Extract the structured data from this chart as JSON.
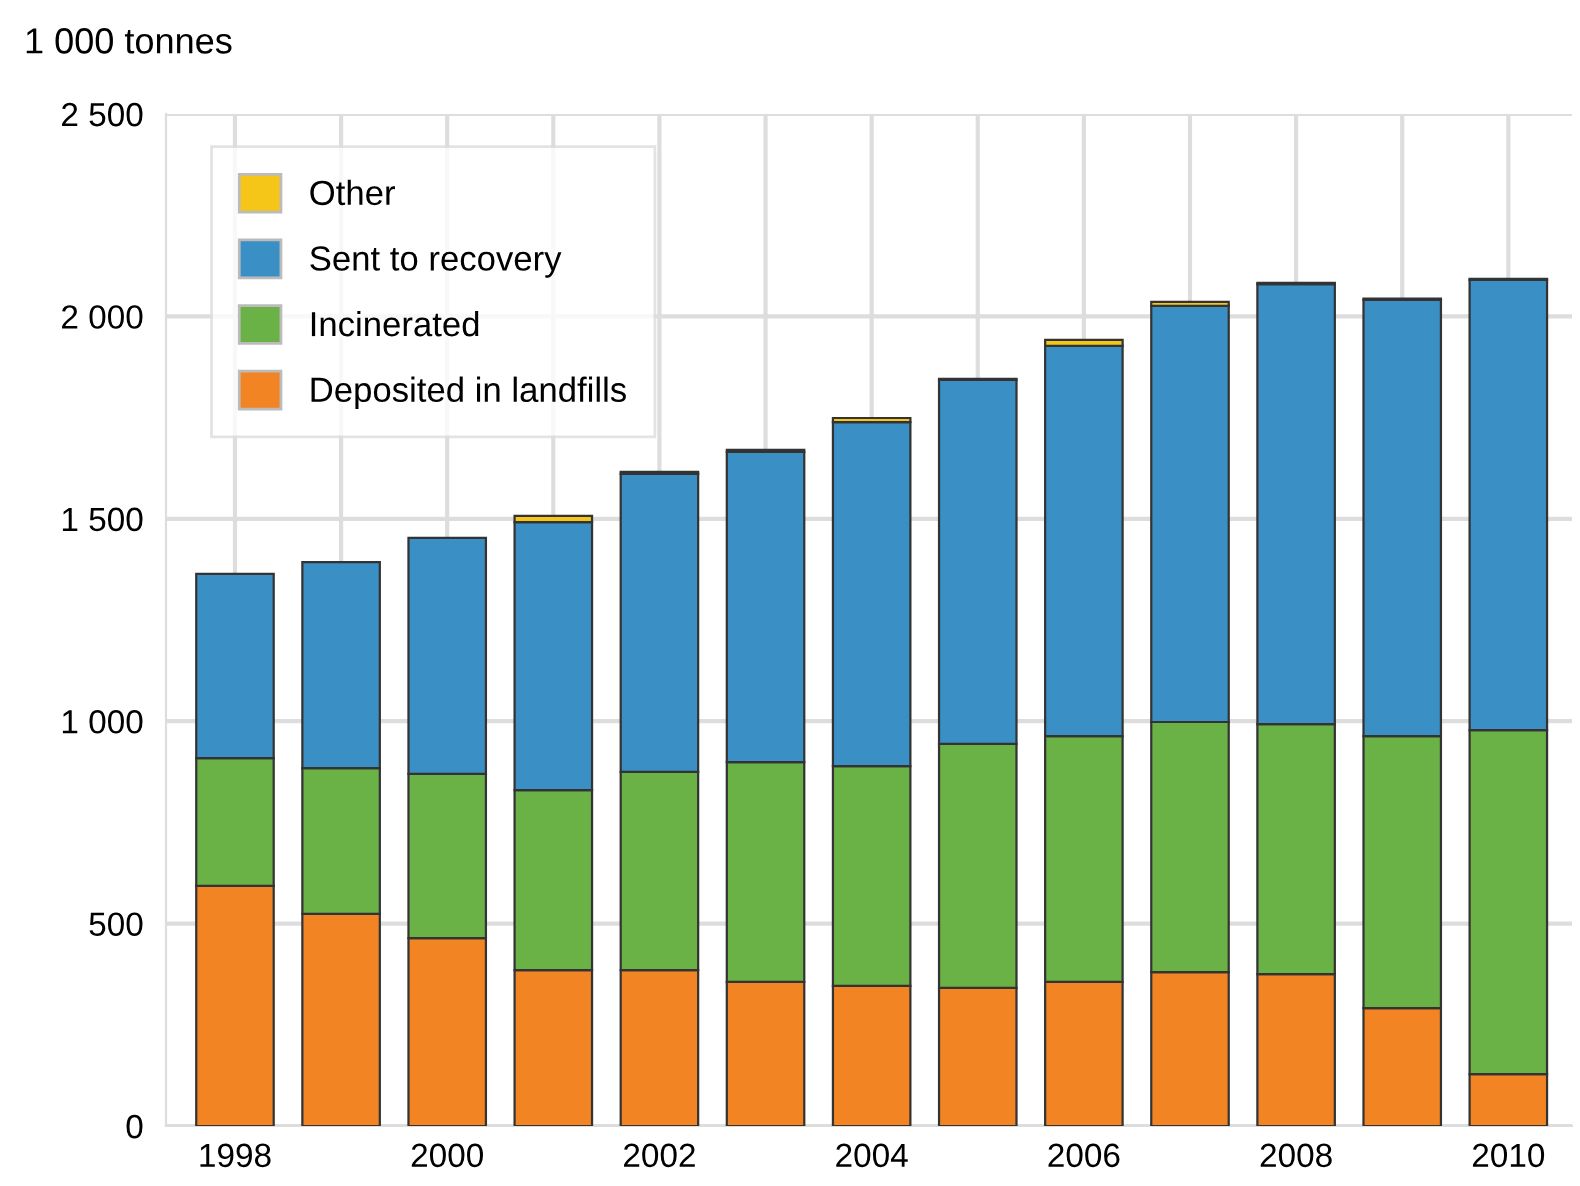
{
  "chart_data": {
    "type": "bar",
    "stacked": true,
    "ylabel": "1 000 tonnes",
    "categories": [
      "1998",
      null,
      "2000",
      null,
      "2002",
      null,
      "2004",
      null,
      "2006",
      null,
      "2008",
      null,
      "2010"
    ],
    "series": [
      {
        "name": "Deposited in landfills",
        "color": "#f28424",
        "values": [
          593,
          524,
          464,
          385,
          385,
          356,
          346,
          341,
          356,
          380,
          375,
          291,
          128
        ]
      },
      {
        "name": "Incinerated",
        "color": "#6ab146",
        "values": [
          316,
          360,
          406,
          445,
          490,
          543,
          543,
          603,
          607,
          618,
          618,
          672,
          850
        ]
      },
      {
        "name": "Sent to recovery",
        "color": "#3a8fc4",
        "values": [
          455,
          509,
          583,
          662,
          736,
          766,
          850,
          899,
          964,
          1028,
          1087,
          1078,
          1112
        ]
      },
      {
        "name": "Other",
        "color": "#f5c518",
        "values": [
          null,
          null,
          null,
          15,
          5,
          5,
          10,
          3,
          15,
          10,
          3,
          3,
          3
        ]
      }
    ],
    "ylim": [
      0,
      2500
    ],
    "yticks": [
      0,
      500,
      {
        "value": 1000,
        "label": "1 000"
      },
      {
        "value": 1500,
        "label": "1 500"
      },
      {
        "value": 2000,
        "label": "2 000"
      },
      {
        "value": 2500,
        "label": "2 500"
      }
    ],
    "grid": true,
    "legend": "top left"
  }
}
